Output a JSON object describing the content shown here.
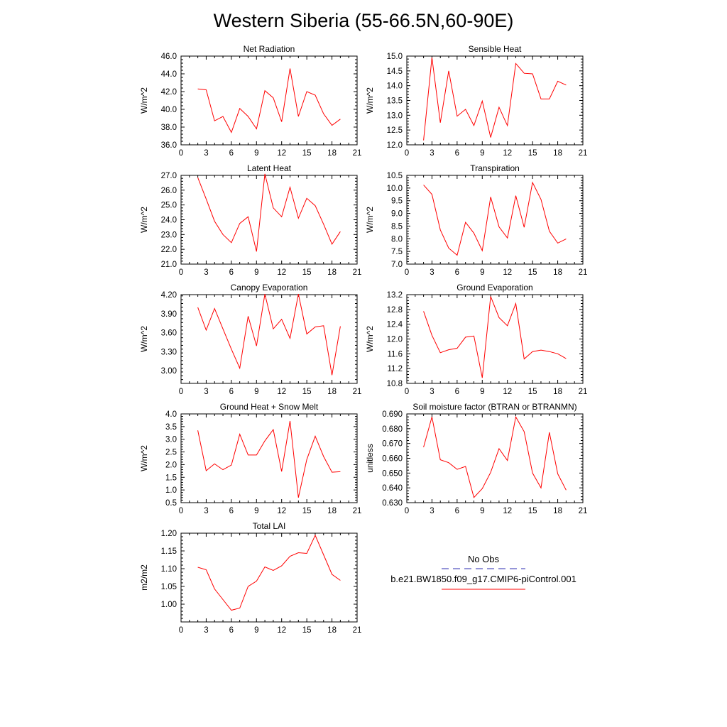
{
  "figure": {
    "title": "Western Siberia (55-66.5N,60-90E)"
  },
  "legend": {
    "obs_label": "No Obs",
    "obs_color": "#2b2bb0",
    "model_label": "b.e21.BW1850.f09_g17.CMIP6-piControl.001",
    "model_color": "#ff0000"
  },
  "chart_data": [
    {
      "type": "line",
      "title": "Net Radiation",
      "ylabel": "W/m^2",
      "xlim": [
        0,
        21
      ],
      "xticks": [
        0,
        3,
        6,
        9,
        12,
        15,
        18,
        21
      ],
      "ylim": [
        36,
        46
      ],
      "yticks": [
        "36.0",
        "38.0",
        "40.0",
        "42.0",
        "44.0",
        "46.0"
      ],
      "x": [
        2,
        3,
        4,
        5,
        6,
        7,
        8,
        9,
        10,
        11,
        12,
        13,
        14,
        15,
        16,
        17,
        18,
        19
      ],
      "series": [
        {
          "color": "#ff0000",
          "values": [
            42.3,
            42.2,
            38.7,
            39.2,
            37.4,
            40.1,
            39.2,
            37.8,
            42.1,
            41.3,
            38.6,
            44.6,
            39.2,
            42.0,
            41.6,
            39.5,
            38.2,
            38.9
          ]
        }
      ]
    },
    {
      "type": "line",
      "title": "Sensible Heat",
      "ylabel": "W/m^2",
      "xlim": [
        0,
        21
      ],
      "xticks": [
        0,
        3,
        6,
        9,
        12,
        15,
        18,
        21
      ],
      "ylim": [
        12,
        15
      ],
      "yticks": [
        "12.0",
        "12.5",
        "13.0",
        "13.5",
        "14.0",
        "14.5",
        "15.0"
      ],
      "x": [
        2,
        3,
        4,
        5,
        6,
        7,
        8,
        9,
        10,
        11,
        12,
        13,
        14,
        15,
        16,
        17,
        18,
        19
      ],
      "series": [
        {
          "color": "#ff0000",
          "values": [
            12.15,
            14.95,
            12.75,
            14.5,
            12.97,
            13.2,
            12.65,
            13.48,
            12.25,
            13.27,
            12.65,
            14.75,
            14.42,
            14.4,
            13.55,
            13.55,
            14.15,
            14.02
          ]
        }
      ]
    },
    {
      "type": "line",
      "title": "Latent Heat",
      "ylabel": "W/m^2",
      "xlim": [
        0,
        21
      ],
      "xticks": [
        0,
        3,
        6,
        9,
        12,
        15,
        18,
        21
      ],
      "ylim": [
        21,
        27
      ],
      "yticks": [
        "21.0",
        "22.0",
        "23.0",
        "24.0",
        "25.0",
        "26.0",
        "27.0"
      ],
      "x": [
        2,
        3,
        4,
        5,
        6,
        7,
        8,
        9,
        10,
        11,
        12,
        13,
        14,
        15,
        16,
        17,
        18,
        19
      ],
      "series": [
        {
          "color": "#ff0000",
          "values": [
            26.85,
            25.4,
            23.9,
            23.0,
            22.45,
            23.75,
            24.2,
            21.85,
            27.1,
            24.8,
            24.2,
            26.2,
            24.1,
            25.45,
            24.95,
            23.7,
            22.35,
            23.2
          ]
        }
      ]
    },
    {
      "type": "line",
      "title": "Transpiration",
      "ylabel": "W/m^2",
      "xlim": [
        0,
        21
      ],
      "xticks": [
        0,
        3,
        6,
        9,
        12,
        15,
        18,
        21
      ],
      "ylim": [
        7,
        10.5
      ],
      "yticks": [
        "7.0",
        "7.5",
        "8.0",
        "8.5",
        "9.0",
        "9.5",
        "10.0",
        "10.5"
      ],
      "x": [
        2,
        3,
        4,
        5,
        6,
        7,
        8,
        9,
        10,
        11,
        12,
        13,
        14,
        15,
        16,
        17,
        18,
        19
      ],
      "series": [
        {
          "color": "#ff0000",
          "values": [
            10.12,
            9.75,
            8.35,
            7.63,
            7.35,
            8.65,
            8.22,
            7.53,
            9.65,
            8.47,
            8.03,
            9.7,
            8.45,
            10.22,
            9.55,
            8.3,
            7.83,
            7.99
          ]
        }
      ]
    },
    {
      "type": "line",
      "title": "Canopy Evaporation",
      "ylabel": "W/m^2",
      "xlim": [
        0,
        21
      ],
      "xticks": [
        0,
        3,
        6,
        9,
        12,
        15,
        18,
        21
      ],
      "ylim": [
        2.8,
        4.2
      ],
      "yticks": [
        "3.00",
        "3.30",
        "3.60",
        "3.90",
        "4.20"
      ],
      "x": [
        2,
        3,
        4,
        5,
        6,
        7,
        8,
        9,
        10,
        11,
        12,
        13,
        14,
        15,
        16,
        17,
        18,
        19
      ],
      "series": [
        {
          "color": "#ff0000",
          "values": [
            4.0,
            3.64,
            3.98,
            3.66,
            3.34,
            3.04,
            3.86,
            3.39,
            4.21,
            3.66,
            3.81,
            3.51,
            4.21,
            3.58,
            3.69,
            3.71,
            2.93,
            3.7
          ]
        }
      ]
    },
    {
      "type": "line",
      "title": "Ground Evaporation",
      "ylabel": "W/m^2",
      "xlim": [
        0,
        21
      ],
      "xticks": [
        0,
        3,
        6,
        9,
        12,
        15,
        18,
        21
      ],
      "ylim": [
        10.8,
        13.2
      ],
      "yticks": [
        "10.8",
        "11.2",
        "11.6",
        "12.0",
        "12.4",
        "12.8",
        "13.2"
      ],
      "x": [
        2,
        3,
        4,
        5,
        6,
        7,
        8,
        9,
        10,
        11,
        12,
        13,
        14,
        15,
        16,
        17,
        18,
        19
      ],
      "series": [
        {
          "color": "#ff0000",
          "values": [
            12.75,
            12.1,
            11.63,
            11.71,
            11.75,
            12.05,
            12.08,
            10.95,
            13.15,
            12.58,
            12.36,
            12.96,
            11.46,
            11.66,
            11.7,
            11.66,
            11.6,
            11.47
          ]
        }
      ]
    },
    {
      "type": "line",
      "title": "Ground Heat + Snow Melt",
      "ylabel": "W/m^2",
      "xlim": [
        0,
        21
      ],
      "xticks": [
        0,
        3,
        6,
        9,
        12,
        15,
        18,
        21
      ],
      "ylim": [
        0.5,
        4.0
      ],
      "yticks": [
        "0.5",
        "1.0",
        "1.5",
        "2.0",
        "2.5",
        "3.0",
        "3.5",
        "4.0"
      ],
      "x": [
        2,
        3,
        4,
        5,
        6,
        7,
        8,
        9,
        10,
        11,
        12,
        13,
        14,
        15,
        16,
        17,
        18,
        19
      ],
      "series": [
        {
          "color": "#ff0000",
          "values": [
            3.35,
            1.76,
            2.03,
            1.8,
            1.98,
            3.2,
            2.38,
            2.38,
            2.94,
            3.38,
            1.73,
            3.72,
            0.7,
            2.2,
            3.12,
            2.32,
            1.7,
            1.72
          ]
        }
      ]
    },
    {
      "type": "line",
      "title": "Soil moisture factor (BTRAN or BTRANMN)",
      "ylabel": "unitless",
      "xlim": [
        0,
        21
      ],
      "xticks": [
        0,
        3,
        6,
        9,
        12,
        15,
        18,
        21
      ],
      "ylim": [
        0.63,
        0.69
      ],
      "yticks": [
        "0.630",
        "0.640",
        "0.650",
        "0.660",
        "0.670",
        "0.680",
        "0.690"
      ],
      "x": [
        2,
        3,
        4,
        5,
        6,
        7,
        8,
        9,
        10,
        11,
        12,
        13,
        14,
        15,
        16,
        17,
        18,
        19
      ],
      "series": [
        {
          "color": "#ff0000",
          "values": [
            0.6675,
            0.688,
            0.659,
            0.657,
            0.6525,
            0.6545,
            0.6335,
            0.6395,
            0.6505,
            0.6665,
            0.6585,
            0.688,
            0.678,
            0.65,
            0.64,
            0.6775,
            0.6495,
            0.6385
          ]
        }
      ]
    },
    {
      "type": "line",
      "title": "Total LAI",
      "ylabel": "m2/m2",
      "xlim": [
        0,
        21
      ],
      "xticks": [
        0,
        3,
        6,
        9,
        12,
        15,
        18,
        21
      ],
      "ylim": [
        0.95,
        1.2
      ],
      "yticks": [
        "1.00",
        "1.05",
        "1.10",
        "1.15",
        "1.20"
      ],
      "x": [
        2,
        3,
        4,
        5,
        6,
        7,
        8,
        9,
        10,
        11,
        12,
        13,
        14,
        15,
        16,
        17,
        18,
        19
      ],
      "series": [
        {
          "color": "#ff0000",
          "values": [
            1.104,
            1.097,
            1.043,
            1.013,
            0.983,
            0.989,
            1.05,
            1.065,
            1.105,
            1.095,
            1.108,
            1.135,
            1.145,
            1.143,
            1.194,
            1.139,
            1.084,
            1.067
          ]
        }
      ]
    }
  ]
}
